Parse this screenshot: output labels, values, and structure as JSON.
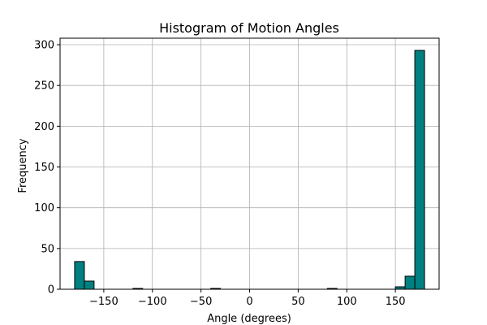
{
  "chart_data": {
    "type": "bar",
    "title": "Histogram of Motion Angles",
    "xlabel": "Angle (degrees)",
    "ylabel": "Frequency",
    "xlim": [
      -195,
      195
    ],
    "ylim": [
      0,
      308
    ],
    "grid": true,
    "bar_color": "#008080",
    "edge_color": "#000000",
    "grid_color": "#b0b0b0",
    "xticks": [
      -150,
      -100,
      -50,
      0,
      50,
      100,
      150
    ],
    "xtick_labels": [
      "−150",
      "−100",
      "−50",
      "0",
      "50",
      "100",
      "150"
    ],
    "yticks": [
      0,
      50,
      100,
      150,
      200,
      250,
      300
    ],
    "ytick_labels": [
      "0",
      "50",
      "100",
      "150",
      "200",
      "250",
      "300"
    ],
    "bins": [
      {
        "x0": -180,
        "x1": -170,
        "count": 34
      },
      {
        "x0": -170,
        "x1": -160,
        "count": 10
      },
      {
        "x0": -120,
        "x1": -110,
        "count": 1
      },
      {
        "x0": -40,
        "x1": -30,
        "count": 1
      },
      {
        "x0": 80,
        "x1": 90,
        "count": 1
      },
      {
        "x0": 150,
        "x1": 160,
        "count": 3
      },
      {
        "x0": 160,
        "x1": 170,
        "count": 16
      },
      {
        "x0": 170,
        "x1": 180,
        "count": 293
      }
    ]
  }
}
